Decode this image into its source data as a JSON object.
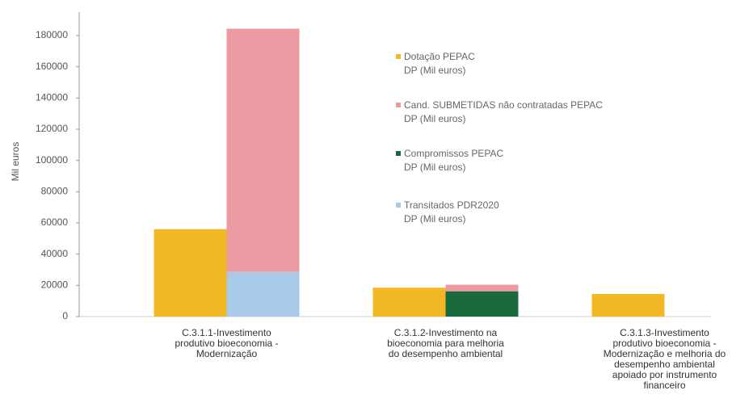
{
  "chart_data": {
    "type": "bar",
    "y_label": "Mil euros",
    "categories": [
      "C.3.1.1-Investimento produtivo bioeconomia - Modernização",
      "C.3.1.2-Investimento na bioeconomia para melhoria do desempenho ambiental",
      "C.3.1.3-Investimento produtivo bioeconomia - Modernização e melhoria do desempenho ambiental apoiado por instrumento financeiro"
    ],
    "series": [
      {
        "name": "Dotação PEPAC\nDP  (Mil euros)",
        "color": "#f1b824",
        "values": [
          56000,
          18500,
          14500
        ]
      },
      {
        "name": "Cand. SUBMETIDAS não contratadas PEPAC\nDP (Mil euros)",
        "color": "#ec9aa1",
        "values": [
          155800,
          4200,
          0
        ]
      },
      {
        "name": "Compromissos PEPAC\nDP (Mil euros)",
        "color": "#1b6a3d",
        "values": [
          0,
          16200,
          0
        ]
      },
      {
        "name": "Transitados PDR2020\nDP  (Mil euros)",
        "color": "#a9c9e9",
        "values": [
          28600,
          0,
          0
        ]
      }
    ],
    "ylim": [
      0,
      195000
    ],
    "yticks": [
      0,
      20000,
      40000,
      60000,
      80000,
      100000,
      120000,
      140000,
      160000,
      180000
    ]
  }
}
